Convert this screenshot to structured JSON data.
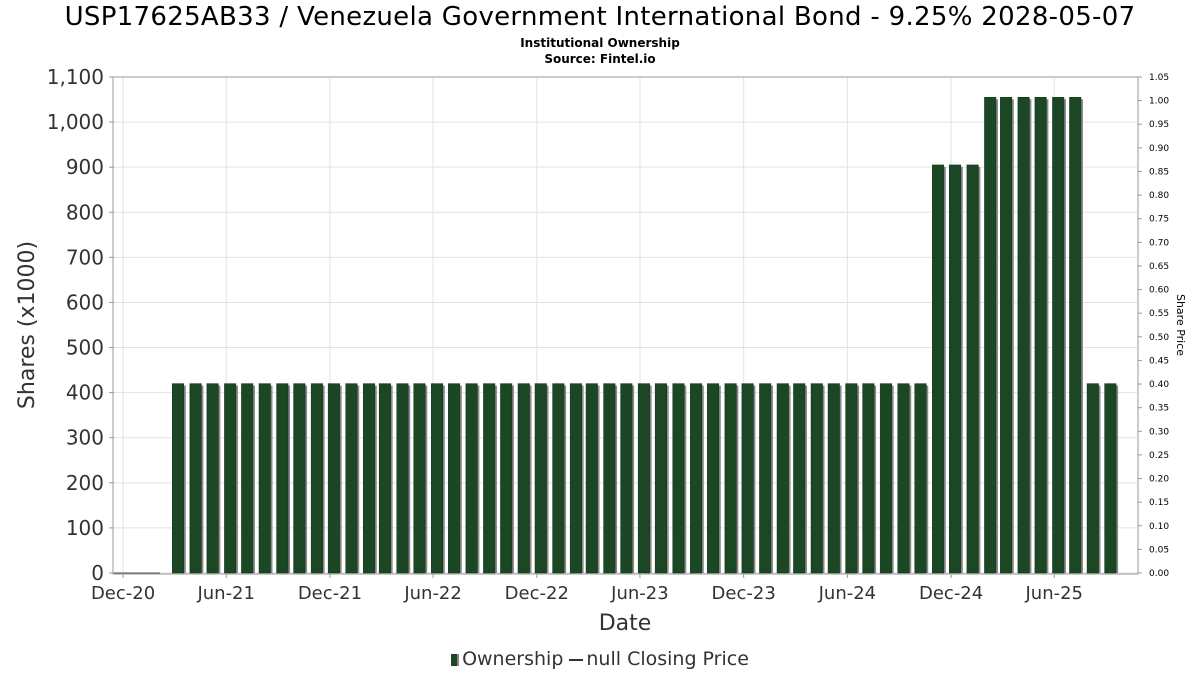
{
  "title": "USP17625AB33 / Venezuela Government International Bond - 9.25% 2028-05-07",
  "subtitle": "Institutional Ownership",
  "source": "Source: Fintel.io",
  "legend": {
    "ownership_label": "Ownership",
    "price_label": "null Closing Price"
  },
  "colors": {
    "bar": "#1b4725",
    "bar_shadow": "#8a8a8a",
    "grid": "#e2e2e2",
    "axis": "#999999"
  },
  "chart_data": {
    "type": "bar",
    "title": "USP17625AB33 / Venezuela Government International Bond - 9.25% 2028-05-07",
    "subtitle": "Institutional Ownership",
    "xlabel": "Date",
    "ylabel": "Shares (x1000)",
    "y2label": "Share Price",
    "ylim": [
      0,
      1100
    ],
    "y2lim": [
      0,
      1.05
    ],
    "yticks": [
      "0",
      "100",
      "200",
      "300",
      "400",
      "500",
      "600",
      "700",
      "800",
      "900",
      "1,000",
      "1,100"
    ],
    "yticks_right": [
      "0.00",
      "0.05",
      "0.10",
      "0.15",
      "0.20",
      "0.25",
      "0.30",
      "0.35",
      "0.40",
      "0.45",
      "0.50",
      "0.55",
      "0.60",
      "0.65",
      "0.70",
      "0.75",
      "0.80",
      "0.85",
      "0.90",
      "0.95",
      "1.00",
      "1.05"
    ],
    "xticks": [
      "Dec-20",
      "Jun-21",
      "Dec-21",
      "Jun-22",
      "Dec-22",
      "Jun-23",
      "Dec-23",
      "Jun-24",
      "Dec-24",
      "Jun-25"
    ],
    "xlim": [
      "2020-11-15",
      "2025-10-25"
    ],
    "grid": true,
    "legend_position": "bottom",
    "series": [
      {
        "name": "Ownership",
        "x": [
          "2021-03-08",
          "2021-04-08",
          "2021-05-08",
          "2021-06-08",
          "2021-07-08",
          "2021-08-08",
          "2021-09-08",
          "2021-10-08",
          "2021-11-08",
          "2021-12-08",
          "2022-01-08",
          "2022-02-08",
          "2022-03-08",
          "2022-04-08",
          "2022-05-08",
          "2022-06-08",
          "2022-07-08",
          "2022-08-08",
          "2022-09-08",
          "2022-10-08",
          "2022-11-08",
          "2022-12-08",
          "2023-01-08",
          "2023-02-08",
          "2023-03-08",
          "2023-04-08",
          "2023-05-08",
          "2023-06-08",
          "2023-07-08",
          "2023-08-08",
          "2023-09-08",
          "2023-10-08",
          "2023-11-08",
          "2023-12-08",
          "2024-01-08",
          "2024-02-08",
          "2024-03-08",
          "2024-04-08",
          "2024-05-08",
          "2024-06-08",
          "2024-07-08",
          "2024-08-08",
          "2024-09-08",
          "2024-10-08",
          "2024-11-08",
          "2024-12-08",
          "2025-01-08",
          "2025-02-08",
          "2025-03-08",
          "2025-04-08",
          "2025-05-08",
          "2025-06-08",
          "2025-07-08",
          "2025-08-08",
          "2025-09-08"
        ],
        "values": [
          420,
          420,
          420,
          420,
          420,
          420,
          420,
          420,
          420,
          420,
          420,
          420,
          420,
          420,
          420,
          420,
          420,
          420,
          420,
          420,
          420,
          420,
          420,
          420,
          420,
          420,
          420,
          420,
          420,
          420,
          420,
          420,
          420,
          420,
          420,
          420,
          420,
          420,
          420,
          420,
          420,
          420,
          420,
          420,
          905,
          905,
          905,
          1055,
          1055,
          1055,
          1055,
          1055,
          1055,
          420,
          420
        ]
      },
      {
        "name": "null Closing Price",
        "x": [],
        "values": []
      }
    ]
  }
}
